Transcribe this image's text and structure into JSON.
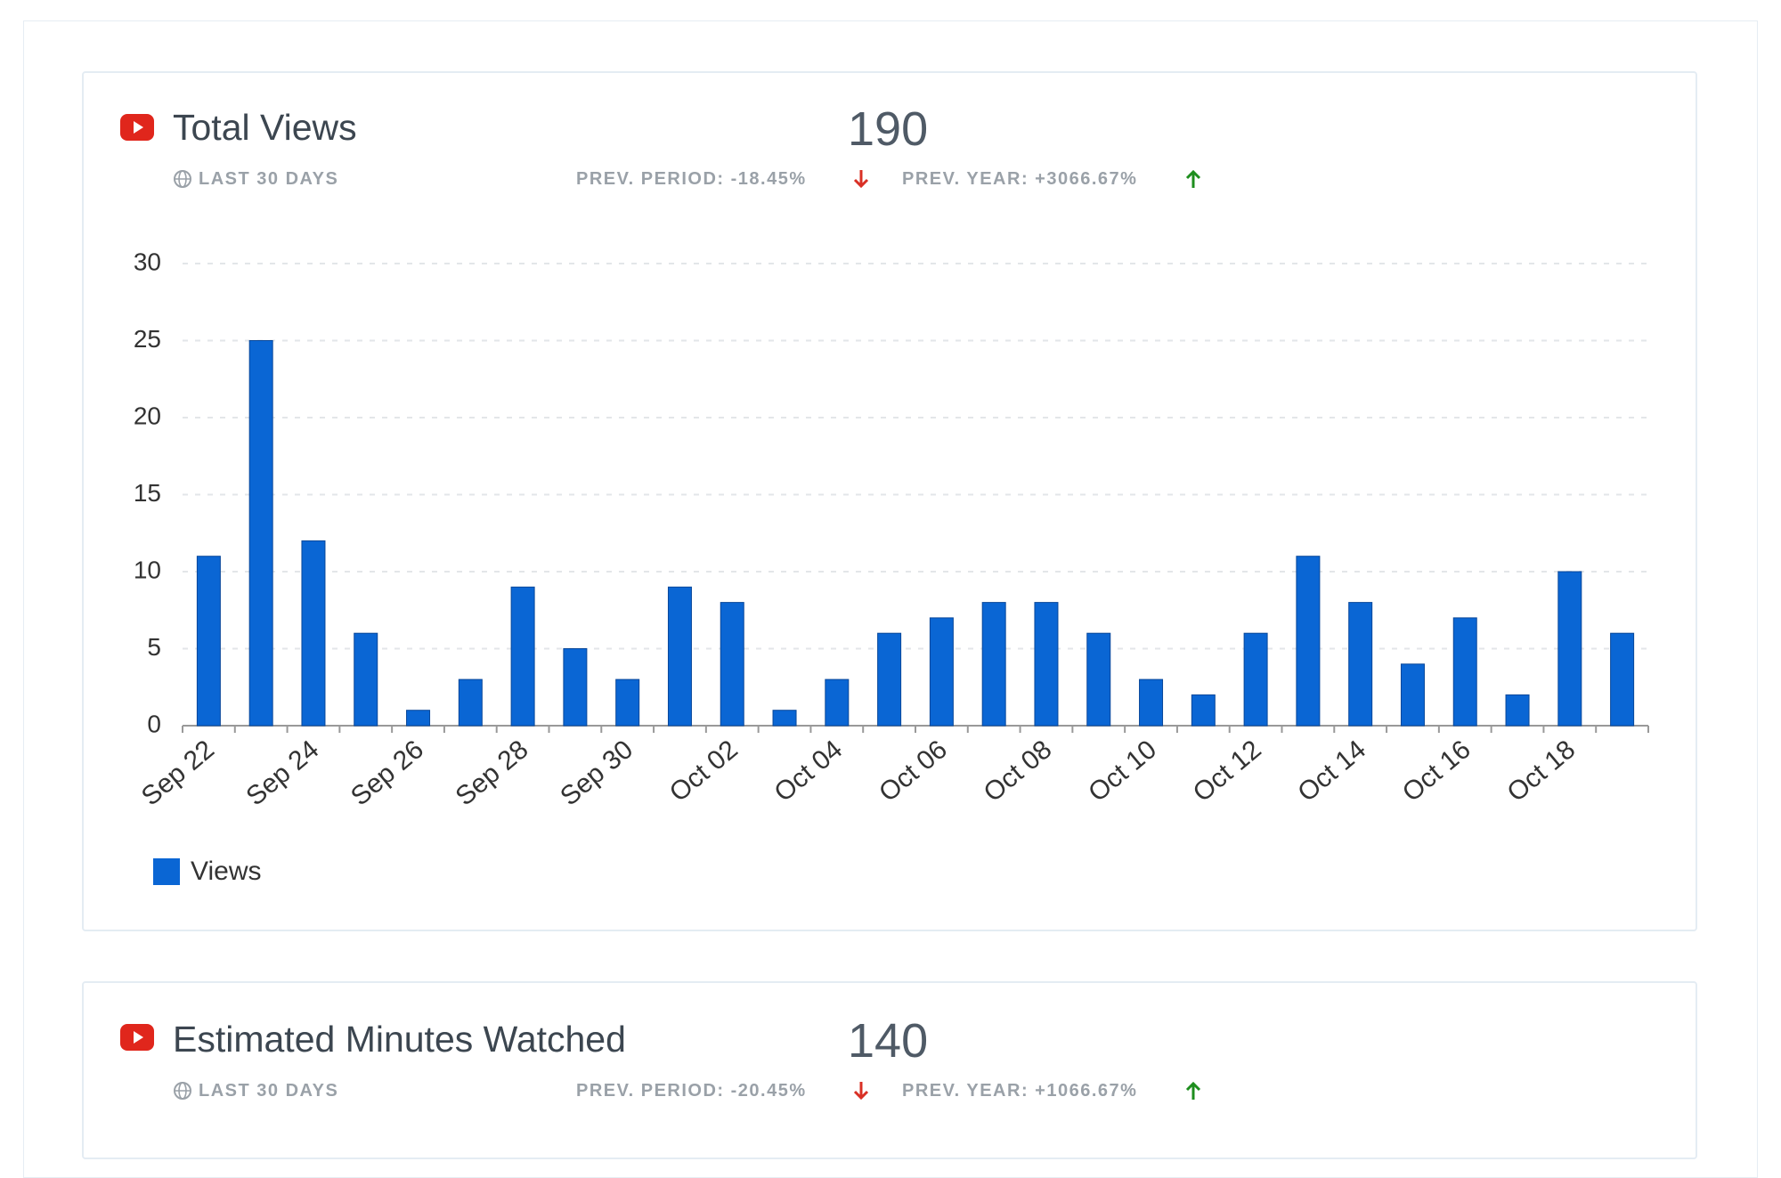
{
  "cards": [
    {
      "title": "Total Views",
      "period": "LAST 30 DAYS",
      "total": "190",
      "prev_period": "PREV. PERIOD: -18.45%",
      "prev_year": "PREV. YEAR: +3066.67%"
    },
    {
      "title": "Estimated Minutes Watched",
      "period": "LAST 30 DAYS",
      "total": "140",
      "prev_period": "PREV. PERIOD: -20.45%",
      "prev_year": "PREV. YEAR: +1066.67%"
    }
  ],
  "chart_data": {
    "type": "bar",
    "categories": [
      "Sep 22",
      null,
      "Sep 24",
      null,
      "Sep 26",
      null,
      "Sep 28",
      null,
      "Sep 30",
      null,
      "Oct 02",
      null,
      "Oct 04",
      null,
      "Oct 06",
      null,
      "Oct 08",
      null,
      "Oct 10",
      null,
      "Oct 12",
      null,
      "Oct 14",
      null,
      "Oct 16",
      null,
      "Oct 18",
      null
    ],
    "series": [
      {
        "name": "Views",
        "color": "#0a66d4",
        "values": [
          11,
          25,
          12,
          6,
          1,
          3,
          9,
          5,
          3,
          9,
          8,
          1,
          3,
          6,
          7,
          8,
          8,
          6,
          3,
          2,
          6,
          11,
          8,
          4,
          7,
          2,
          10,
          6
        ]
      }
    ],
    "ylim": [
      0,
      30
    ],
    "yticks": [
      0,
      5,
      10,
      15,
      20,
      25,
      30
    ],
    "grid": true,
    "legend": "bottom-left"
  }
}
